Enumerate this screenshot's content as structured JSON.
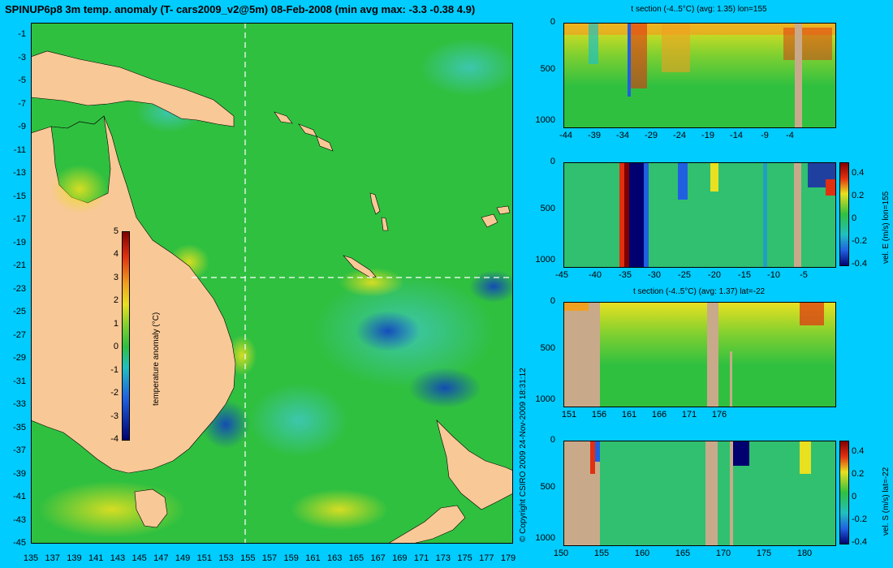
{
  "map": {
    "title": "SPINUP6p8 3m temp. anomaly (T- cars2009_v2@5m) 08-Feb-2008 (min avg max: -3.3 -0.38 4.9)",
    "lat_ticks": [
      "-1",
      "-3",
      "-5",
      "-7",
      "-9",
      "-11",
      "-13",
      "-15",
      "-17",
      "-19",
      "-21",
      "-23",
      "-25",
      "-27",
      "-29",
      "-31",
      "-33",
      "-35",
      "-37",
      "-39",
      "-41",
      "-43",
      "-45"
    ],
    "lon_ticks": [
      "135",
      "137",
      "139",
      "141",
      "143",
      "145",
      "147",
      "149",
      "151",
      "153",
      "155",
      "157",
      "159",
      "161",
      "163",
      "165",
      "167",
      "169",
      "171",
      "173",
      "175",
      "177",
      "179"
    ],
    "colorbar": {
      "label": "temperature anomaly (°C)",
      "ticks": [
        "5",
        "4",
        "3",
        "2",
        "1",
        "0",
        "-1",
        "-2",
        "-3",
        "-4"
      ]
    },
    "section_lon": 155,
    "section_lat": -22
  },
  "copyright": "© Copyright CSIRO 2009   24-Nov-2009 18:31:12",
  "panels": [
    {
      "title": "t section (-4..5°C) (avg: 1.35) lon=155",
      "y_ticks": [
        "0",
        "500",
        "1000"
      ],
      "x_ticks": [
        "-44",
        "-39",
        "-34",
        "-29",
        "-24",
        "-19",
        "-14",
        "-9",
        "-4"
      ]
    },
    {
      "title": "",
      "y_ticks": [
        "0",
        "500",
        "1000"
      ],
      "x_ticks": [
        "-45",
        "-40",
        "-35",
        "-30",
        "-25",
        "-20",
        "-15",
        "-10",
        "-5"
      ],
      "colorbar_label": "vel. E (m/s) lon=155",
      "colorbar_ticks": [
        "0.4",
        "0.2",
        "0",
        "-0.2",
        "-0.4"
      ]
    },
    {
      "title": "t section (-4..5°C) (avg: 1.37) lat=-22",
      "y_ticks": [
        "0",
        "500",
        "1000"
      ],
      "x_ticks": [
        "151",
        "156",
        "161",
        "166",
        "171",
        "176"
      ]
    },
    {
      "title": "",
      "y_ticks": [
        "0",
        "500",
        "1000"
      ],
      "x_ticks": [
        "150",
        "155",
        "160",
        "165",
        "170",
        "175",
        "180"
      ],
      "colorbar_label": "vel. S (m/s) lat=-22",
      "colorbar_ticks": [
        "0.4",
        "0.2",
        "0",
        "-0.2",
        "-0.4"
      ]
    }
  ],
  "colors": {
    "background": "#00ccff",
    "ocean": "#30c040",
    "land": "#f8c896",
    "section_land": "#c8aa8a"
  }
}
